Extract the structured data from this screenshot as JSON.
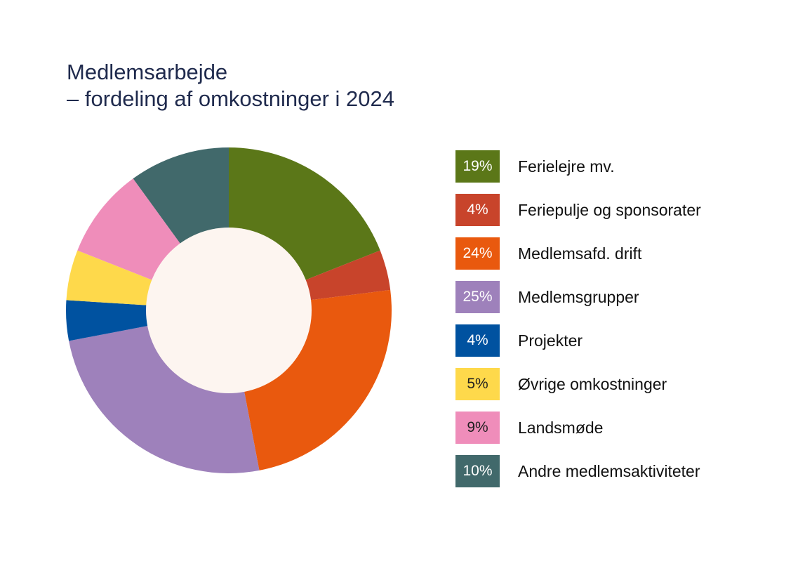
{
  "title": {
    "line1": "Medlemsarbejde",
    "line2": "– fordeling af omkostninger i 2024"
  },
  "chart_data": {
    "type": "pie",
    "variant": "donut",
    "title": "Medlemsarbejde – fordeling af omkostninger i 2024",
    "unit": "%",
    "legend_position": "right",
    "slices": [
      {
        "label": "Ferielejre mv.",
        "value": 19,
        "value_label": "19%",
        "color": "#5b7718",
        "label_color": "#ffffff"
      },
      {
        "label": "Feriepulje og sponsorater",
        "value": 4,
        "value_label": "4%",
        "color": "#c8442b",
        "label_color": "#ffffff"
      },
      {
        "label": "Medlemsafd. drift",
        "value": 24,
        "value_label": "24%",
        "color": "#e9590e",
        "label_color": "#ffffff"
      },
      {
        "label": "Medlemsgrupper",
        "value": 25,
        "value_label": "25%",
        "color": "#9e81bb",
        "label_color": "#ffffff"
      },
      {
        "label": "Projekter",
        "value": 4,
        "value_label": "4%",
        "color": "#0052a0",
        "label_color": "#ffffff"
      },
      {
        "label": "Øvrige omkostninger",
        "value": 5,
        "value_label": "5%",
        "color": "#fed94b",
        "label_color": "#1f1f1f"
      },
      {
        "label": "Landsmøde",
        "value": 9,
        "value_label": "9%",
        "color": "#ef8dba",
        "label_color": "#1f1f1f"
      },
      {
        "label": "Andre medlemsaktiviteter",
        "value": 10,
        "value_label": "10%",
        "color": "#41696b",
        "label_color": "#ffffff"
      }
    ],
    "center_color": "#fdf5f0"
  }
}
